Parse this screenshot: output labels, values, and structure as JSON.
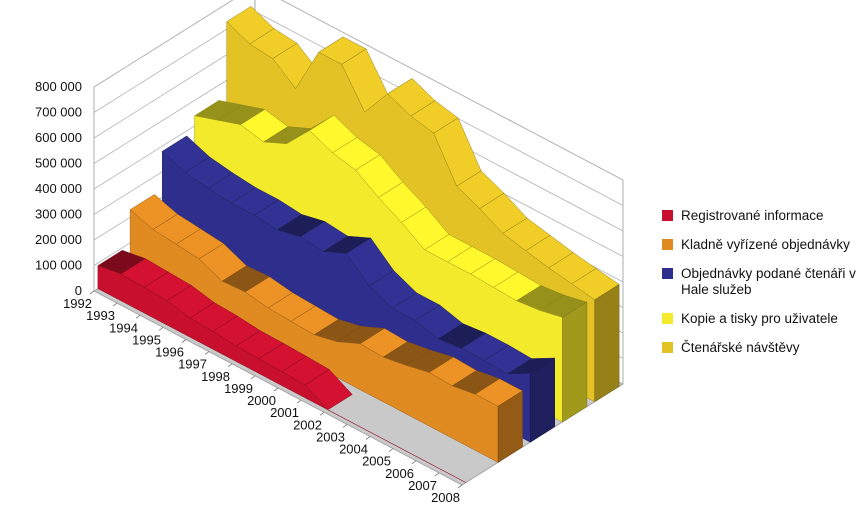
{
  "chart_data": {
    "type": "area",
    "categories": [
      "1992",
      "1993",
      "1994",
      "1995",
      "1996",
      "1997",
      "1998",
      "1999",
      "2000",
      "2001",
      "2002",
      "2003",
      "2004",
      "2005",
      "2006",
      "2007",
      "2008"
    ],
    "ylim": [
      0,
      800000
    ],
    "y_ticks": [
      "0",
      "100 000",
      "200 000",
      "300 000",
      "400 000",
      "500 000",
      "600 000",
      "700 000",
      "800 000"
    ],
    "grid": true,
    "legend_position": "right",
    "series": [
      {
        "name": "Registrované informace",
        "color": "#c8102e",
        "values": [
          90000,
          105000,
          100000,
          95000,
          75000,
          70000,
          60000,
          58000,
          55000,
          50000,
          0,
          0,
          0,
          0,
          0,
          0,
          0
        ]
      },
      {
        "name": "Kladně vyřízené objednávky",
        "color": "#e08a22",
        "values": [
          230000,
          200000,
          190000,
          180000,
          140000,
          145000,
          130000,
          125000,
          120000,
          140000,
          180000,
          175000,
          190000,
          210000,
          205000,
          220000,
          220000
        ]
      },
      {
        "name": "Objednávky podané čtenáři v Hale služeb",
        "color": "#2e2f8c",
        "values": [
          380000,
          345000,
          330000,
          320000,
          320000,
          310000,
          330000,
          320000,
          360000,
          280000,
          240000,
          240000,
          215000,
          225000,
          225000,
          220000,
          270000
        ]
      },
      {
        "name": "Kopie a tisky pro uživatele",
        "color": "#f2ea2a",
        "values": [
          440000,
          470000,
          500000,
          480000,
          520000,
          620000,
          580000,
          560000,
          500000,
          450000,
          390000,
          390000,
          390000,
          385000,
          380000,
          390000,
          410000
        ]
      },
      {
        "name": "Čtenářské návštěvy",
        "color": "#e3c225",
        "values": [
          730000,
          690000,
          680000,
          610000,
          800000,
          800000,
          660000,
          780000,
          740000,
          720000,
          560000,
          520000,
          470000,
          450000,
          430000,
          415000,
          400000
        ]
      }
    ]
  }
}
